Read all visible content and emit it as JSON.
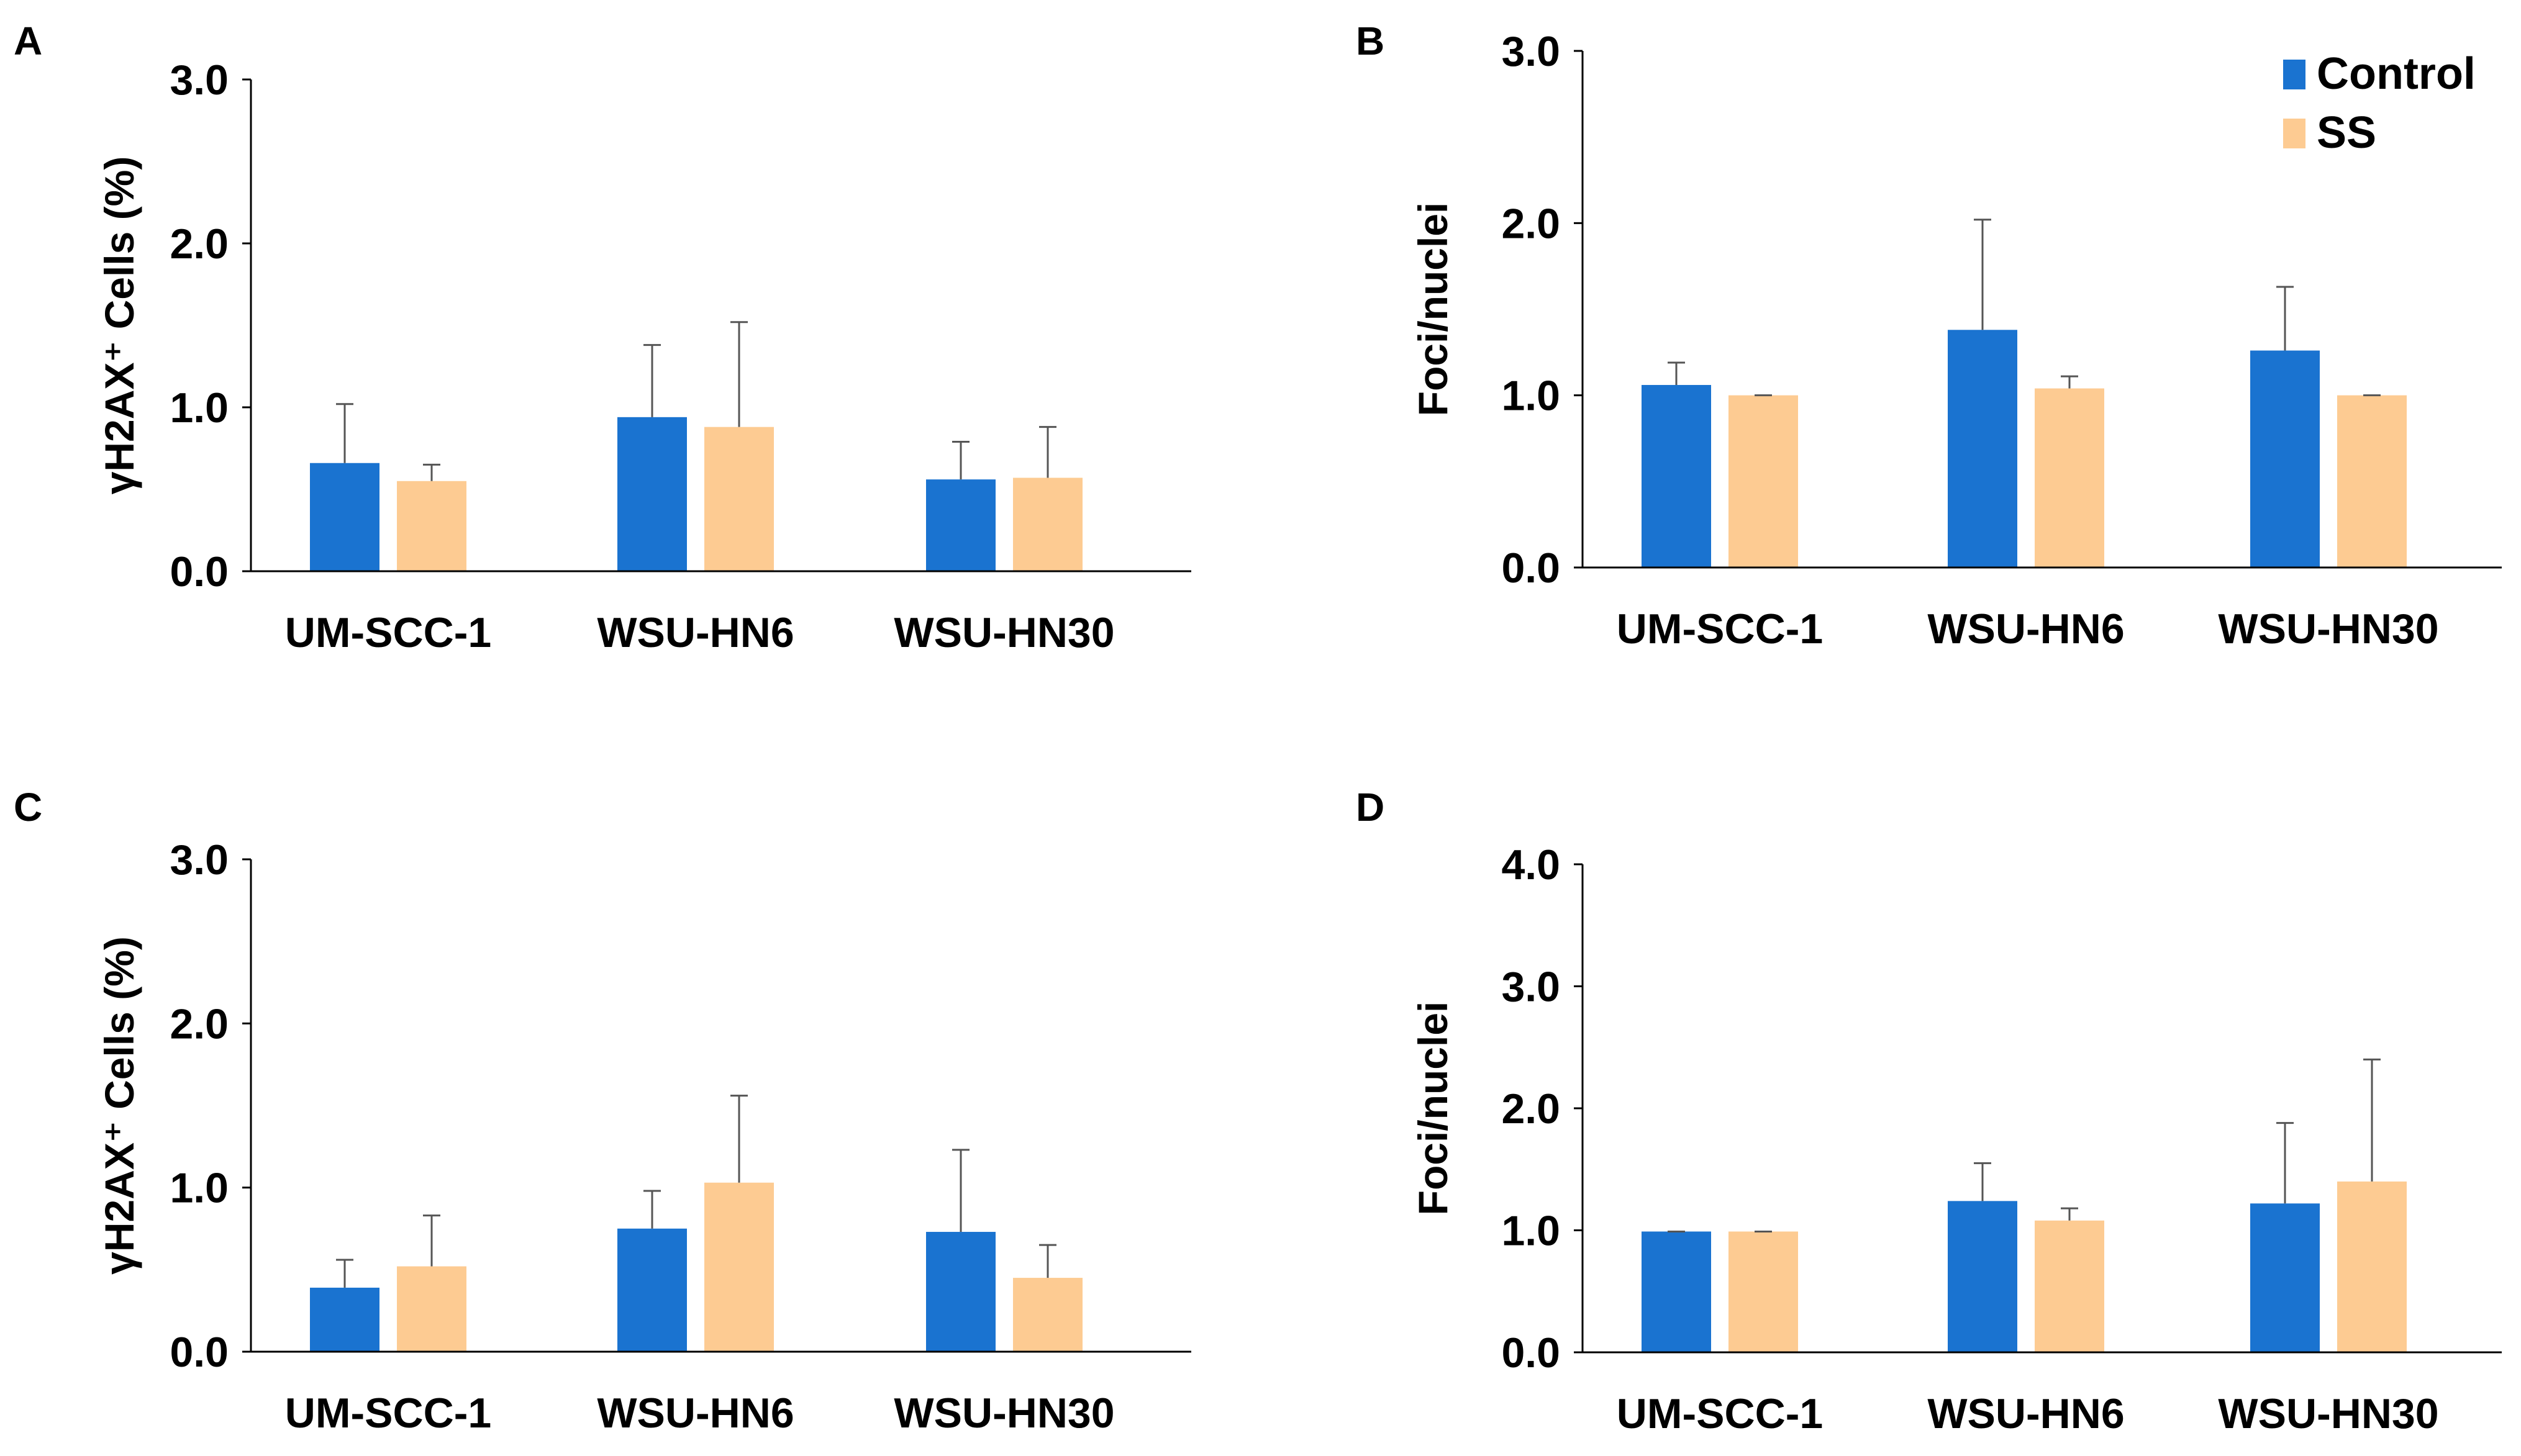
{
  "legend": {
    "items": [
      {
        "label": "Control",
        "color": "#1a73d0"
      },
      {
        "label": "SS",
        "color": "#fdcb92"
      }
    ]
  },
  "chart_data": [
    {
      "panel": "A",
      "type": "bar",
      "ylabel": "γH2AX⁺ Cells (%)",
      "ylim": [
        0,
        3.0
      ],
      "yticks": [
        "0.0",
        "1.0",
        "2.0",
        "3.0"
      ],
      "categories": [
        "UM-SCC-1",
        "WSU-HN6",
        "WSU-HN30"
      ],
      "series": [
        {
          "name": "Control",
          "values": [
            0.66,
            0.94,
            0.56
          ],
          "errors": [
            0.36,
            0.44,
            0.23
          ]
        },
        {
          "name": "SS",
          "values": [
            0.55,
            0.88,
            0.57
          ],
          "errors": [
            0.1,
            0.64,
            0.31
          ]
        }
      ]
    },
    {
      "panel": "B",
      "type": "bar",
      "ylabel": "Foci/nuclei",
      "ylim": [
        0,
        3.0
      ],
      "yticks": [
        "0.0",
        "1.0",
        "2.0",
        "3.0"
      ],
      "categories": [
        "UM-SCC-1",
        "WSU-HN6",
        "WSU-HN30"
      ],
      "series": [
        {
          "name": "Control",
          "values": [
            1.06,
            1.38,
            1.26
          ],
          "errors": [
            0.13,
            0.64,
            0.37
          ]
        },
        {
          "name": "SS",
          "values": [
            1.0,
            1.04,
            1.0
          ],
          "errors": [
            0.0,
            0.07,
            0.0
          ]
        }
      ]
    },
    {
      "panel": "C",
      "type": "bar",
      "ylabel": "γH2AX⁺ Cells (%)",
      "ylim": [
        0,
        3.0
      ],
      "yticks": [
        "0.0",
        "1.0",
        "2.0",
        "3.0"
      ],
      "categories": [
        "UM-SCC-1",
        "WSU-HN6",
        "WSU-HN30"
      ],
      "series": [
        {
          "name": "Control",
          "values": [
            0.39,
            0.75,
            0.73
          ],
          "errors": [
            0.17,
            0.23,
            0.5
          ]
        },
        {
          "name": "SS",
          "values": [
            0.52,
            1.03,
            0.45
          ],
          "errors": [
            0.31,
            0.53,
            0.2
          ]
        }
      ]
    },
    {
      "panel": "D",
      "type": "bar",
      "ylabel": "Foci/nuclei",
      "ylim": [
        0,
        4.0
      ],
      "yticks": [
        "0.0",
        "1.0",
        "2.0",
        "3.0",
        "4.0"
      ],
      "categories": [
        "UM-SCC-1",
        "WSU-HN6",
        "WSU-HN30"
      ],
      "series": [
        {
          "name": "Control",
          "values": [
            0.99,
            1.24,
            1.22
          ],
          "errors": [
            0.0,
            0.31,
            0.66
          ]
        },
        {
          "name": "SS",
          "values": [
            0.99,
            1.08,
            1.4
          ],
          "errors": [
            0.0,
            0.1,
            1.0
          ]
        }
      ]
    }
  ]
}
